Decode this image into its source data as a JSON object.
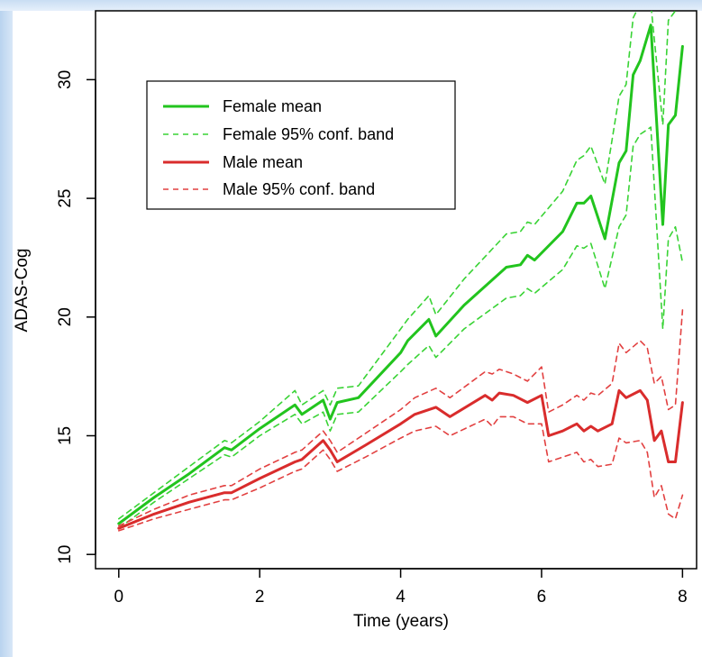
{
  "chart_data": {
    "type": "line",
    "xlabel": "Time (years)",
    "ylabel": "ADAS-Cog",
    "xlim": [
      -0.33,
      8.2
    ],
    "ylim": [
      9.4,
      32.9
    ],
    "x_ticks": [
      0,
      2,
      4,
      6,
      8
    ],
    "y_ticks": [
      10,
      15,
      20,
      25,
      30
    ],
    "x_tick_labels": [
      "0",
      "2",
      "4",
      "6",
      "8"
    ],
    "y_tick_labels": [
      "10",
      "15",
      "20",
      "25",
      "30"
    ],
    "grid": false,
    "legend_position": "top-left",
    "series": [
      {
        "name": "Female mean",
        "color": "#22c41e",
        "style": "solid",
        "points": [
          [
            0,
            11.3
          ],
          [
            0.5,
            12.4
          ],
          [
            1,
            13.4
          ],
          [
            1.5,
            14.5
          ],
          [
            1.6,
            14.4
          ],
          [
            2,
            15.3
          ],
          [
            2.5,
            16.3
          ],
          [
            2.6,
            15.9
          ],
          [
            2.9,
            16.5
          ],
          [
            3,
            15.7
          ],
          [
            3.1,
            16.4
          ],
          [
            3.4,
            16.6
          ],
          [
            4,
            18.5
          ],
          [
            4.1,
            19.0
          ],
          [
            4.4,
            19.9
          ],
          [
            4.5,
            19.2
          ],
          [
            4.9,
            20.5
          ],
          [
            5.5,
            22.1
          ],
          [
            5.7,
            22.2
          ],
          [
            5.8,
            22.6
          ],
          [
            5.9,
            22.4
          ],
          [
            6.3,
            23.6
          ],
          [
            6.5,
            24.8
          ],
          [
            6.6,
            24.8
          ],
          [
            6.7,
            25.1
          ],
          [
            6.9,
            23.3
          ],
          [
            7.1,
            26.5
          ],
          [
            7.2,
            27.0
          ],
          [
            7.3,
            30.2
          ],
          [
            7.4,
            30.8
          ],
          [
            7.55,
            32.3
          ],
          [
            7.72,
            23.9
          ],
          [
            7.8,
            28.1
          ],
          [
            7.9,
            28.5
          ],
          [
            8,
            31.4
          ]
        ]
      },
      {
        "name": "Female 95% conf. band",
        "color": "#39d335",
        "style": "dashed",
        "upper": [
          [
            0,
            11.5
          ],
          [
            0.5,
            12.6
          ],
          [
            1,
            13.7
          ],
          [
            1.5,
            14.8
          ],
          [
            1.6,
            14.7
          ],
          [
            2,
            15.6
          ],
          [
            2.5,
            16.9
          ],
          [
            2.6,
            16.3
          ],
          [
            2.9,
            16.9
          ],
          [
            3,
            16.3
          ],
          [
            3.1,
            17.0
          ],
          [
            3.4,
            17.1
          ],
          [
            4,
            19.5
          ],
          [
            4.1,
            19.9
          ],
          [
            4.4,
            20.9
          ],
          [
            4.5,
            20.1
          ],
          [
            4.9,
            21.6
          ],
          [
            5.5,
            23.5
          ],
          [
            5.7,
            23.6
          ],
          [
            5.8,
            24.0
          ],
          [
            5.9,
            23.9
          ],
          [
            6.3,
            25.3
          ],
          [
            6.5,
            26.6
          ],
          [
            6.6,
            26.8
          ],
          [
            6.7,
            27.2
          ],
          [
            6.9,
            25.6
          ],
          [
            7.1,
            29.3
          ],
          [
            7.2,
            29.8
          ],
          [
            7.3,
            32.6
          ],
          [
            7.4,
            33.2
          ],
          [
            7.55,
            33.2
          ],
          [
            7.72,
            28.1
          ],
          [
            7.8,
            32.5
          ],
          [
            7.9,
            32.9
          ],
          [
            8,
            33.2
          ]
        ],
        "lower": [
          [
            0,
            11.1
          ],
          [
            0.5,
            12.2
          ],
          [
            1,
            13.2
          ],
          [
            1.5,
            14.2
          ],
          [
            1.6,
            14.1
          ],
          [
            2,
            15.0
          ],
          [
            2.5,
            15.9
          ],
          [
            2.6,
            15.5
          ],
          [
            2.9,
            16.0
          ],
          [
            3,
            15.2
          ],
          [
            3.1,
            15.9
          ],
          [
            3.4,
            16.0
          ],
          [
            4,
            17.7
          ],
          [
            4.1,
            18.0
          ],
          [
            4.4,
            18.8
          ],
          [
            4.5,
            18.3
          ],
          [
            4.9,
            19.5
          ],
          [
            5.5,
            20.8
          ],
          [
            5.7,
            20.9
          ],
          [
            5.8,
            21.2
          ],
          [
            5.9,
            21.0
          ],
          [
            6.3,
            22.0
          ],
          [
            6.5,
            23.0
          ],
          [
            6.6,
            22.9
          ],
          [
            6.7,
            23.1
          ],
          [
            6.9,
            21.2
          ],
          [
            7.1,
            23.8
          ],
          [
            7.2,
            24.3
          ],
          [
            7.3,
            27.2
          ],
          [
            7.4,
            27.7
          ],
          [
            7.55,
            28.0
          ],
          [
            7.72,
            19.5
          ],
          [
            7.8,
            23.3
          ],
          [
            7.9,
            23.8
          ],
          [
            8,
            22.3
          ]
        ]
      },
      {
        "name": "Male mean",
        "color": "#d92c2c",
        "style": "solid",
        "points": [
          [
            0,
            11.1
          ],
          [
            0.5,
            11.7
          ],
          [
            1,
            12.2
          ],
          [
            1.5,
            12.6
          ],
          [
            1.6,
            12.6
          ],
          [
            2,
            13.2
          ],
          [
            2.5,
            13.9
          ],
          [
            2.6,
            14.0
          ],
          [
            2.9,
            14.8
          ],
          [
            3,
            14.4
          ],
          [
            3.1,
            13.9
          ],
          [
            3.5,
            14.6
          ],
          [
            4,
            15.5
          ],
          [
            4.2,
            15.9
          ],
          [
            4.5,
            16.2
          ],
          [
            4.7,
            15.8
          ],
          [
            5.2,
            16.7
          ],
          [
            5.3,
            16.5
          ],
          [
            5.4,
            16.8
          ],
          [
            5.6,
            16.7
          ],
          [
            5.8,
            16.4
          ],
          [
            6,
            16.7
          ],
          [
            6.1,
            15.0
          ],
          [
            6.3,
            15.2
          ],
          [
            6.5,
            15.5
          ],
          [
            6.6,
            15.2
          ],
          [
            6.7,
            15.4
          ],
          [
            6.8,
            15.2
          ],
          [
            7,
            15.5
          ],
          [
            7.1,
            16.9
          ],
          [
            7.2,
            16.6
          ],
          [
            7.4,
            16.9
          ],
          [
            7.5,
            16.5
          ],
          [
            7.6,
            14.8
          ],
          [
            7.7,
            15.2
          ],
          [
            7.8,
            13.9
          ],
          [
            7.9,
            13.9
          ],
          [
            8,
            16.4
          ]
        ]
      },
      {
        "name": "Male 95% conf. band",
        "color": "#e24040",
        "style": "dashed",
        "upper": [
          [
            0,
            11.2
          ],
          [
            0.5,
            11.9
          ],
          [
            1,
            12.5
          ],
          [
            1.5,
            12.9
          ],
          [
            1.6,
            12.9
          ],
          [
            2,
            13.6
          ],
          [
            2.5,
            14.3
          ],
          [
            2.6,
            14.4
          ],
          [
            2.9,
            15.2
          ],
          [
            3,
            14.8
          ],
          [
            3.1,
            14.3
          ],
          [
            3.5,
            15.1
          ],
          [
            4,
            16.1
          ],
          [
            4.2,
            16.6
          ],
          [
            4.5,
            17.0
          ],
          [
            4.7,
            16.6
          ],
          [
            5.2,
            17.7
          ],
          [
            5.3,
            17.6
          ],
          [
            5.4,
            17.8
          ],
          [
            5.6,
            17.6
          ],
          [
            5.8,
            17.3
          ],
          [
            6,
            17.9
          ],
          [
            6.1,
            16.0
          ],
          [
            6.3,
            16.3
          ],
          [
            6.5,
            16.7
          ],
          [
            6.6,
            16.5
          ],
          [
            6.7,
            16.8
          ],
          [
            6.8,
            16.7
          ],
          [
            7,
            17.2
          ],
          [
            7.1,
            18.9
          ],
          [
            7.2,
            18.5
          ],
          [
            7.4,
            19.0
          ],
          [
            7.5,
            18.7
          ],
          [
            7.6,
            17.2
          ],
          [
            7.7,
            17.5
          ],
          [
            7.8,
            16.1
          ],
          [
            7.9,
            16.3
          ],
          [
            8,
            20.3
          ]
        ],
        "lower": [
          [
            0,
            11.0
          ],
          [
            0.5,
            11.5
          ],
          [
            1,
            11.9
          ],
          [
            1.5,
            12.3
          ],
          [
            1.6,
            12.3
          ],
          [
            2,
            12.8
          ],
          [
            2.5,
            13.5
          ],
          [
            2.6,
            13.6
          ],
          [
            2.9,
            14.4
          ],
          [
            3,
            14.0
          ],
          [
            3.1,
            13.5
          ],
          [
            3.5,
            14.1
          ],
          [
            4,
            14.9
          ],
          [
            4.2,
            15.2
          ],
          [
            4.5,
            15.4
          ],
          [
            4.7,
            15.0
          ],
          [
            5.2,
            15.7
          ],
          [
            5.3,
            15.4
          ],
          [
            5.4,
            15.8
          ],
          [
            5.6,
            15.8
          ],
          [
            5.8,
            15.5
          ],
          [
            6,
            15.5
          ],
          [
            6.1,
            13.9
          ],
          [
            6.3,
            14.1
          ],
          [
            6.5,
            14.3
          ],
          [
            6.6,
            13.9
          ],
          [
            6.7,
            14.0
          ],
          [
            6.8,
            13.7
          ],
          [
            7,
            13.8
          ],
          [
            7.1,
            14.9
          ],
          [
            7.2,
            14.7
          ],
          [
            7.4,
            14.8
          ],
          [
            7.5,
            14.3
          ],
          [
            7.6,
            12.4
          ],
          [
            7.7,
            12.9
          ],
          [
            7.8,
            11.7
          ],
          [
            7.9,
            11.5
          ],
          [
            8,
            12.5
          ]
        ]
      }
    ]
  },
  "legend": {
    "items": [
      {
        "label": "Female mean",
        "color": "#22c41e",
        "style": "solid"
      },
      {
        "label": "Female 95% conf. band",
        "color": "#39d335",
        "style": "dashed"
      },
      {
        "label": "Male mean",
        "color": "#d92c2c",
        "style": "solid"
      },
      {
        "label": "Male 95% conf. band",
        "color": "#e24040",
        "style": "dashed"
      }
    ]
  }
}
